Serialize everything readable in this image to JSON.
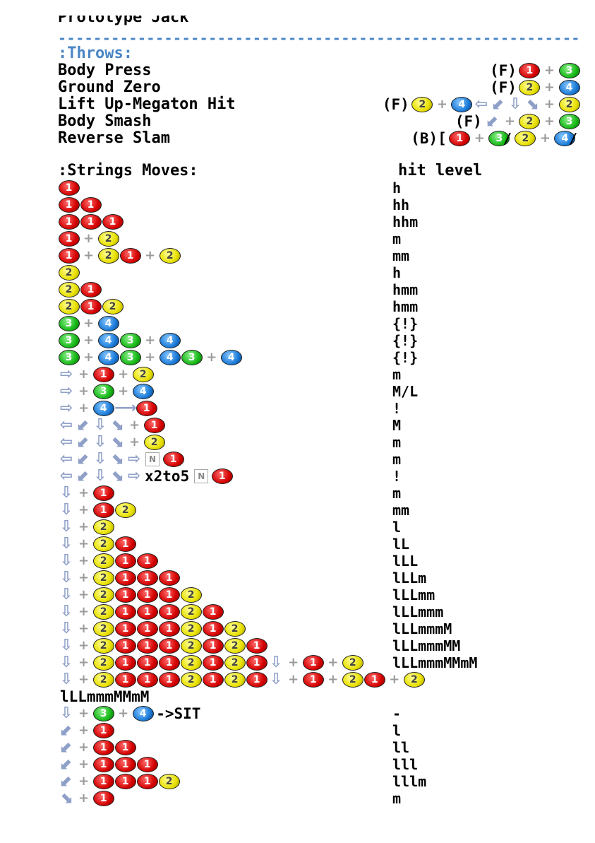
{
  "doc_title": "Prototype Jack",
  "separator": "-----------------------------------------------------------",
  "throws_heading": ":Throws:",
  "throws": [
    {
      "name": "Body Press",
      "cmd": [
        [
          "t",
          "(F) "
        ],
        [
          "b",
          1
        ],
        [
          "p"
        ],
        [
          "b",
          3
        ]
      ]
    },
    {
      "name": "Ground Zero",
      "cmd": [
        [
          "t",
          "(F) "
        ],
        [
          "b",
          2
        ],
        [
          "p"
        ],
        [
          "b",
          4
        ]
      ]
    },
    {
      "name": "Lift Up-Megaton Hit",
      "cmd": [
        [
          "t",
          "(F) "
        ],
        [
          "b",
          2
        ],
        [
          "p"
        ],
        [
          "b",
          4
        ],
        [
          "a",
          "b"
        ],
        [
          "a",
          "db"
        ],
        [
          "a",
          "d"
        ],
        [
          "a",
          "df"
        ],
        [
          "p"
        ],
        [
          "b",
          2
        ]
      ]
    },
    {
      "name": "Body Smash",
      "cmd": [
        [
          "t",
          "(F) "
        ],
        [
          "a",
          "db"
        ],
        [
          "p"
        ],
        [
          "b",
          2
        ],
        [
          "p"
        ],
        [
          "b",
          3
        ]
      ]
    },
    {
      "name": "Reverse Slam",
      "cmd": [
        [
          "t",
          "(B)["
        ],
        [
          "b",
          1
        ],
        [
          "p"
        ],
        [
          "b",
          3
        ],
        [
          "s",
          "/"
        ],
        [
          "b",
          2
        ],
        [
          "p"
        ],
        [
          "b",
          4
        ],
        [
          "s",
          "/"
        ]
      ]
    }
  ],
  "strings_heading": ":Strings Moves:",
  "hit_level_heading": "hit level",
  "strings": [
    {
      "cmd": [
        [
          "b",
          1
        ]
      ],
      "level": "h"
    },
    {
      "cmd": [
        [
          "b",
          1
        ],
        [
          "b",
          1
        ]
      ],
      "level": "hh"
    },
    {
      "cmd": [
        [
          "b",
          1
        ],
        [
          "b",
          1
        ],
        [
          "b",
          1
        ]
      ],
      "level": "hhm"
    },
    {
      "cmd": [
        [
          "b",
          1
        ],
        [
          "p"
        ],
        [
          "b",
          2
        ]
      ],
      "level": "m"
    },
    {
      "cmd": [
        [
          "b",
          1
        ],
        [
          "p"
        ],
        [
          "b",
          2
        ],
        [
          "b",
          1
        ],
        [
          "p"
        ],
        [
          "b",
          2
        ]
      ],
      "level": "mm"
    },
    {
      "cmd": [
        [
          "b",
          2
        ]
      ],
      "level": "h"
    },
    {
      "cmd": [
        [
          "b",
          2
        ],
        [
          "b",
          1
        ]
      ],
      "level": "hmm"
    },
    {
      "cmd": [
        [
          "b",
          2
        ],
        [
          "b",
          1
        ],
        [
          "b",
          2
        ]
      ],
      "level": "hmm"
    },
    {
      "cmd": [
        [
          "b",
          3
        ],
        [
          "p"
        ],
        [
          "b",
          4
        ]
      ],
      "level": "{!}"
    },
    {
      "cmd": [
        [
          "b",
          3
        ],
        [
          "p"
        ],
        [
          "b",
          4
        ],
        [
          "b",
          3
        ],
        [
          "p"
        ],
        [
          "b",
          4
        ]
      ],
      "level": "{!}"
    },
    {
      "cmd": [
        [
          "b",
          3
        ],
        [
          "p"
        ],
        [
          "b",
          4
        ],
        [
          "b",
          3
        ],
        [
          "p"
        ],
        [
          "b",
          4
        ],
        [
          "b",
          3
        ],
        [
          "p"
        ],
        [
          "b",
          4
        ]
      ],
      "level": "{!}"
    },
    {
      "cmd": [
        [
          "a",
          "f"
        ],
        [
          "p"
        ],
        [
          "b",
          1
        ],
        [
          "p"
        ],
        [
          "b",
          2
        ]
      ],
      "level": "m"
    },
    {
      "cmd": [
        [
          "a",
          "f"
        ],
        [
          "p"
        ],
        [
          "b",
          3
        ],
        [
          "p"
        ],
        [
          "b",
          4
        ]
      ],
      "level": "M/L"
    },
    {
      "cmd": [
        [
          "a",
          "f"
        ],
        [
          "p"
        ],
        [
          "b",
          4
        ],
        [
          "a",
          "lf"
        ],
        [
          "b",
          1
        ]
      ],
      "level": "!"
    },
    {
      "cmd": [
        [
          "a",
          "b"
        ],
        [
          "a",
          "db"
        ],
        [
          "a",
          "d"
        ],
        [
          "a",
          "df"
        ],
        [
          "p"
        ],
        [
          "b",
          1
        ]
      ],
      "level": "M"
    },
    {
      "cmd": [
        [
          "a",
          "b"
        ],
        [
          "a",
          "db"
        ],
        [
          "a",
          "d"
        ],
        [
          "a",
          "df"
        ],
        [
          "p"
        ],
        [
          "b",
          2
        ]
      ],
      "level": "m"
    },
    {
      "cmd": [
        [
          "a",
          "b"
        ],
        [
          "a",
          "db"
        ],
        [
          "a",
          "d"
        ],
        [
          "a",
          "df"
        ],
        [
          "a",
          "f"
        ],
        [
          "n"
        ],
        [
          "b",
          1
        ]
      ],
      "level": "m"
    },
    {
      "cmd": [
        [
          "a",
          "b"
        ],
        [
          "a",
          "db"
        ],
        [
          "a",
          "d"
        ],
        [
          "a",
          "df"
        ],
        [
          "a",
          "f"
        ],
        [
          "t",
          "x2to5"
        ],
        [
          "n"
        ],
        [
          "b",
          1
        ]
      ],
      "level": "!"
    },
    {
      "cmd": [
        [
          "a",
          "d"
        ],
        [
          "p"
        ],
        [
          "b",
          1
        ]
      ],
      "level": "m"
    },
    {
      "cmd": [
        [
          "a",
          "d"
        ],
        [
          "p"
        ],
        [
          "b",
          1
        ],
        [
          "b",
          2
        ]
      ],
      "level": "mm"
    },
    {
      "cmd": [
        [
          "a",
          "d"
        ],
        [
          "p"
        ],
        [
          "b",
          2
        ]
      ],
      "level": "l"
    },
    {
      "cmd": [
        [
          "a",
          "d"
        ],
        [
          "p"
        ],
        [
          "b",
          2
        ],
        [
          "b",
          1
        ]
      ],
      "level": "lL"
    },
    {
      "cmd": [
        [
          "a",
          "d"
        ],
        [
          "p"
        ],
        [
          "b",
          2
        ],
        [
          "b",
          1
        ],
        [
          "b",
          1
        ]
      ],
      "level": "lLL"
    },
    {
      "cmd": [
        [
          "a",
          "d"
        ],
        [
          "p"
        ],
        [
          "b",
          2
        ],
        [
          "b",
          1
        ],
        [
          "b",
          1
        ],
        [
          "b",
          1
        ]
      ],
      "level": "lLLm"
    },
    {
      "cmd": [
        [
          "a",
          "d"
        ],
        [
          "p"
        ],
        [
          "b",
          2
        ],
        [
          "b",
          1
        ],
        [
          "b",
          1
        ],
        [
          "b",
          1
        ],
        [
          "b",
          2
        ]
      ],
      "level": "lLLmm"
    },
    {
      "cmd": [
        [
          "a",
          "d"
        ],
        [
          "p"
        ],
        [
          "b",
          2
        ],
        [
          "b",
          1
        ],
        [
          "b",
          1
        ],
        [
          "b",
          1
        ],
        [
          "b",
          2
        ],
        [
          "b",
          1
        ]
      ],
      "level": "lLLmmm"
    },
    {
      "cmd": [
        [
          "a",
          "d"
        ],
        [
          "p"
        ],
        [
          "b",
          2
        ],
        [
          "b",
          1
        ],
        [
          "b",
          1
        ],
        [
          "b",
          1
        ],
        [
          "b",
          2
        ],
        [
          "b",
          1
        ],
        [
          "b",
          2
        ]
      ],
      "level": "lLLmmmM"
    },
    {
      "cmd": [
        [
          "a",
          "d"
        ],
        [
          "p"
        ],
        [
          "b",
          2
        ],
        [
          "b",
          1
        ],
        [
          "b",
          1
        ],
        [
          "b",
          1
        ],
        [
          "b",
          2
        ],
        [
          "b",
          1
        ],
        [
          "b",
          2
        ],
        [
          "b",
          1
        ]
      ],
      "level": "lLLmmmMM"
    },
    {
      "cmd": [
        [
          "a",
          "d"
        ],
        [
          "p"
        ],
        [
          "b",
          2
        ],
        [
          "b",
          1
        ],
        [
          "b",
          1
        ],
        [
          "b",
          1
        ],
        [
          "b",
          2
        ],
        [
          "b",
          1
        ],
        [
          "b",
          2
        ],
        [
          "b",
          1
        ],
        [
          "a",
          "d"
        ],
        [
          "p"
        ],
        [
          "b",
          1
        ],
        [
          "p"
        ],
        [
          "b",
          2
        ]
      ],
      "level": "lLLmmmMMmM"
    },
    {
      "cmd": [
        [
          "a",
          "d"
        ],
        [
          "p"
        ],
        [
          "b",
          2
        ],
        [
          "b",
          1
        ],
        [
          "b",
          1
        ],
        [
          "b",
          1
        ],
        [
          "b",
          2
        ],
        [
          "b",
          1
        ],
        [
          "b",
          2
        ],
        [
          "b",
          1
        ],
        [
          "a",
          "d"
        ],
        [
          "p"
        ],
        [
          "b",
          1
        ],
        [
          "p"
        ],
        [
          "b",
          2
        ],
        [
          "b",
          1
        ],
        [
          "p"
        ],
        [
          "b",
          2
        ]
      ],
      "level": ""
    },
    {
      "cmd": [
        [
          "t",
          "lLLmmmMMmM"
        ]
      ],
      "level": ""
    },
    {
      "cmd": [
        [
          "a",
          "d"
        ],
        [
          "p"
        ],
        [
          "b",
          3
        ],
        [
          "p"
        ],
        [
          "b",
          4
        ],
        [
          "t",
          "->SIT"
        ]
      ],
      "level": "-"
    },
    {
      "cmd": [
        [
          "a",
          "db"
        ],
        [
          "p"
        ],
        [
          "b",
          1
        ]
      ],
      "level": "l"
    },
    {
      "cmd": [
        [
          "a",
          "db"
        ],
        [
          "p"
        ],
        [
          "b",
          1
        ],
        [
          "b",
          1
        ]
      ],
      "level": "ll"
    },
    {
      "cmd": [
        [
          "a",
          "db"
        ],
        [
          "p"
        ],
        [
          "b",
          1
        ],
        [
          "b",
          1
        ],
        [
          "b",
          1
        ]
      ],
      "level": "lll"
    },
    {
      "cmd": [
        [
          "a",
          "db"
        ],
        [
          "p"
        ],
        [
          "b",
          1
        ],
        [
          "b",
          1
        ],
        [
          "b",
          1
        ],
        [
          "b",
          2
        ]
      ],
      "level": "lllm"
    },
    {
      "cmd": [
        [
          "a",
          "df"
        ],
        [
          "p"
        ],
        [
          "b",
          1
        ]
      ],
      "level": "m"
    }
  ],
  "arrow_glyphs": {
    "b": "⇦",
    "db": "⬋",
    "d": "⇩",
    "df": "⬊",
    "f": "⇨",
    "lf": "⟶"
  },
  "button_labels": {
    "1": "1",
    "2": "2",
    "3": "3",
    "4": "4"
  },
  "plus_glyph": "+",
  "neutral_glyph": "N",
  "colors": {
    "button_1": "#d40000",
    "button_2": "#e8e000",
    "button_3": "#16b816",
    "button_4": "#1a7ad8",
    "heading": "#4a86c5",
    "arrow": "#8fa0c8"
  }
}
